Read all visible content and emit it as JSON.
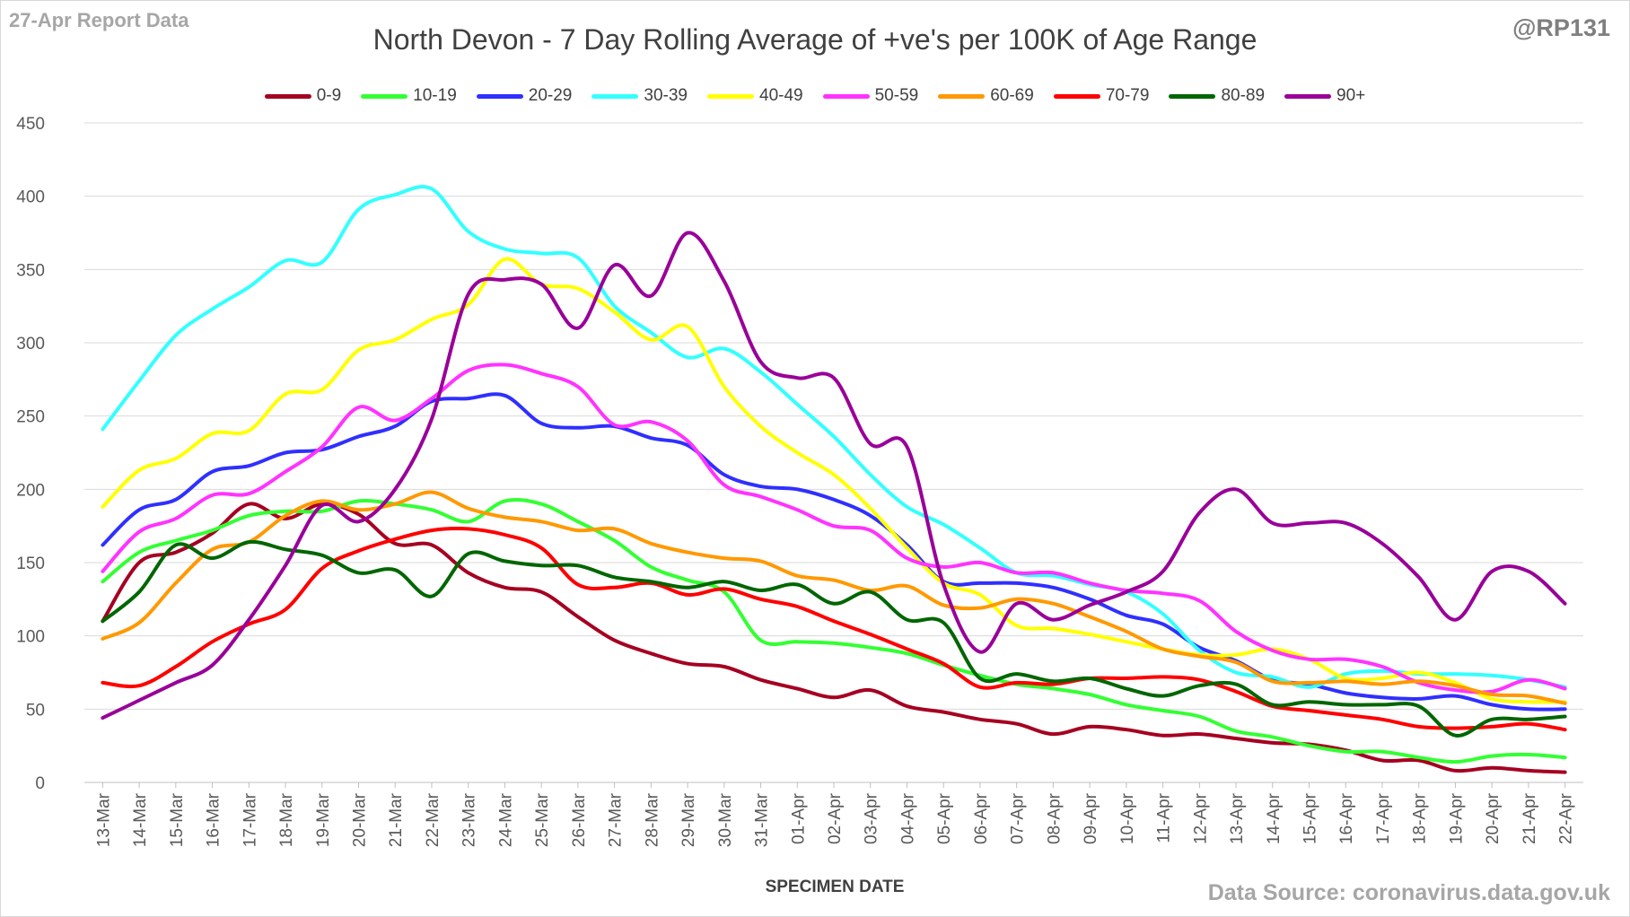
{
  "header": {
    "report_label": "27-Apr Report Data",
    "handle": "@RP131",
    "source": "Data Source: coronavirus.data.gov.uk"
  },
  "chart_data": {
    "type": "line",
    "title": "North Devon - 7 Day Rolling Average of +ve's per 100K of Age Range",
    "xlabel": "SPECIMEN DATE",
    "ylabel": "",
    "ylim": [
      0,
      450
    ],
    "yticks": [
      0,
      50,
      100,
      150,
      200,
      250,
      300,
      350,
      400,
      450
    ],
    "grid": "horizontal",
    "legend_position": "top",
    "categories": [
      "13-Mar",
      "14-Mar",
      "15-Mar",
      "16-Mar",
      "17-Mar",
      "18-Mar",
      "19-Mar",
      "20-Mar",
      "21-Mar",
      "22-Mar",
      "23-Mar",
      "24-Mar",
      "25-Mar",
      "26-Mar",
      "27-Mar",
      "28-Mar",
      "29-Mar",
      "30-Mar",
      "31-Mar",
      "01-Apr",
      "02-Apr",
      "03-Apr",
      "04-Apr",
      "05-Apr",
      "06-Apr",
      "07-Apr",
      "08-Apr",
      "09-Apr",
      "10-Apr",
      "11-Apr",
      "12-Apr",
      "13-Apr",
      "14-Apr",
      "15-Apr",
      "16-Apr",
      "17-Apr",
      "18-Apr",
      "19-Apr",
      "20-Apr",
      "21-Apr",
      "22-Apr"
    ],
    "series": [
      {
        "name": "0-9",
        "color": "#a50021",
        "values": [
          110,
          150,
          157,
          170,
          190,
          180,
          190,
          183,
          163,
          162,
          143,
          133,
          130,
          113,
          97,
          88,
          81,
          79,
          70,
          64,
          58,
          63,
          52,
          48,
          43,
          40,
          33,
          38,
          36,
          32,
          33,
          30,
          27,
          26,
          22,
          15,
          15,
          8,
          10,
          8,
          7
        ]
      },
      {
        "name": "10-19",
        "color": "#33ff33",
        "values": [
          137,
          157,
          165,
          172,
          182,
          185,
          185,
          192,
          190,
          186,
          178,
          192,
          190,
          178,
          165,
          147,
          138,
          130,
          97,
          96,
          95,
          92,
          88,
          80,
          73,
          67,
          64,
          60,
          53,
          49,
          45,
          35,
          31,
          25,
          21,
          21,
          17,
          14,
          18,
          19,
          17
        ]
      },
      {
        "name": "20-29",
        "color": "#2f2fff",
        "values": [
          162,
          186,
          193,
          212,
          216,
          225,
          227,
          236,
          243,
          260,
          262,
          264,
          245,
          242,
          243,
          235,
          230,
          210,
          202,
          200,
          193,
          182,
          162,
          137,
          136,
          136,
          133,
          125,
          114,
          108,
          92,
          83,
          70,
          67,
          61,
          58,
          57,
          59,
          53,
          50,
          50
        ]
      },
      {
        "name": "30-39",
        "color": "#33ffff",
        "values": [
          241,
          274,
          305,
          323,
          338,
          356,
          355,
          391,
          401,
          405,
          376,
          364,
          361,
          358,
          325,
          307,
          290,
          296,
          280,
          258,
          236,
          210,
          188,
          176,
          160,
          143,
          141,
          135,
          130,
          115,
          90,
          75,
          72,
          65,
          74,
          76,
          74,
          74,
          73,
          70,
          65
        ]
      },
      {
        "name": "40-49",
        "color": "#ffff00",
        "values": [
          188,
          213,
          221,
          238,
          240,
          265,
          268,
          295,
          302,
          316,
          326,
          357,
          340,
          337,
          321,
          302,
          311,
          270,
          243,
          225,
          210,
          187,
          160,
          136,
          128,
          107,
          105,
          101,
          96,
          91,
          87,
          87,
          91,
          84,
          71,
          71,
          75,
          68,
          57,
          55,
          55
        ]
      },
      {
        "name": "50-59",
        "color": "#ff33ff",
        "values": [
          144,
          171,
          180,
          196,
          197,
          212,
          229,
          256,
          247,
          262,
          281,
          285,
          279,
          270,
          244,
          246,
          233,
          203,
          195,
          186,
          175,
          172,
          153,
          147,
          150,
          143,
          143,
          136,
          131,
          129,
          124,
          103,
          90,
          84,
          84,
          79,
          68,
          63,
          62,
          70,
          64
        ]
      },
      {
        "name": "60-69",
        "color": "#ff9900",
        "values": [
          98,
          109,
          136,
          159,
          164,
          182,
          192,
          186,
          190,
          198,
          187,
          181,
          178,
          172,
          173,
          163,
          157,
          153,
          151,
          141,
          138,
          131,
          134,
          121,
          119,
          125,
          122,
          113,
          103,
          91,
          86,
          82,
          69,
          68,
          69,
          67,
          69,
          66,
          60,
          59,
          54
        ]
      },
      {
        "name": "70-79",
        "color": "#ff0000",
        "values": [
          68,
          66,
          79,
          96,
          108,
          118,
          146,
          158,
          166,
          172,
          173,
          169,
          160,
          135,
          133,
          136,
          128,
          132,
          125,
          120,
          110,
          101,
          91,
          81,
          65,
          68,
          67,
          71,
          71,
          72,
          70,
          62,
          52,
          49,
          46,
          43,
          38,
          37,
          38,
          40,
          36
        ]
      },
      {
        "name": "80-89",
        "color": "#006600",
        "values": [
          110,
          130,
          162,
          153,
          164,
          159,
          155,
          143,
          145,
          127,
          156,
          151,
          148,
          148,
          140,
          137,
          133,
          137,
          131,
          135,
          122,
          130,
          111,
          109,
          71,
          74,
          69,
          71,
          64,
          59,
          66,
          67,
          53,
          55,
          53,
          53,
          52,
          32,
          43,
          43,
          45
        ]
      },
      {
        "name": "90+",
        "color": "#990099",
        "values": [
          44,
          56,
          68,
          80,
          111,
          148,
          189,
          178,
          200,
          248,
          333,
          343,
          340,
          310,
          353,
          332,
          375,
          342,
          287,
          276,
          276,
          231,
          229,
          135,
          89,
          122,
          111,
          121,
          130,
          144,
          184,
          200,
          177,
          177,
          177,
          163,
          140,
          111,
          144,
          144,
          122
        ]
      }
    ]
  }
}
